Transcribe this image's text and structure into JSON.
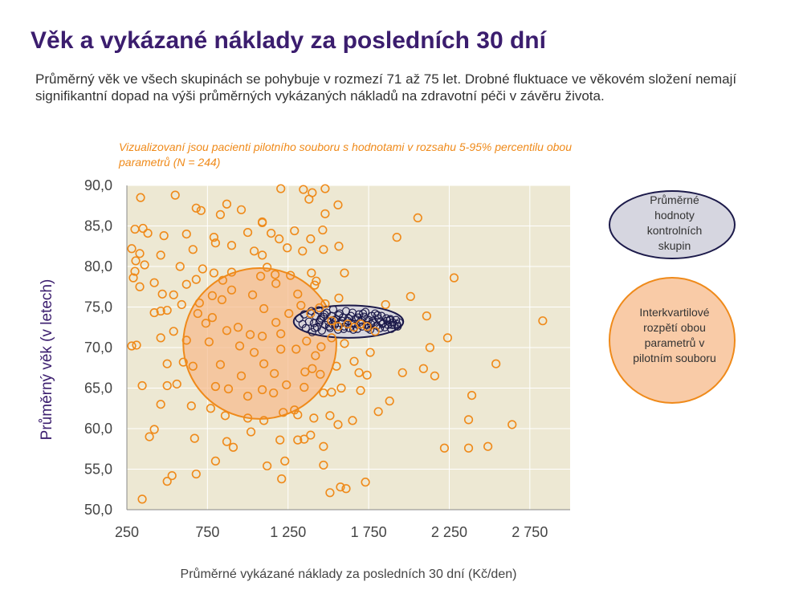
{
  "title": "Věk a vykázané náklady za posledních 30 dní",
  "subtitle": "Průměrný věk ve všech skupinách se pohybuje v rozmezí 71 až 75 let. Drobné fluktuace ve věkovém složení nemají signifikantní dopad na výši průměrných vykázaných nákladů na zdravotní péči v závěru života.",
  "note": "Vizualizovaní jsou pacienti pilotního souboru s hodnotami v rozsahu 5-95% percentilu obou parametrů (N = 244)",
  "legend": {
    "control": "Průměrné hodnoty kontrolních skupin",
    "iqr": "Interkvartilové rozpětí obou parametrů v pilotním souboru"
  },
  "colors": {
    "title": "#3b1d6e",
    "pilot": "#ef8a1a",
    "pilot_fill": "#f7b98a",
    "control": "#1c1a4a",
    "control_fill": "#d6d6e0",
    "plot_bg": "#ede8d3"
  },
  "chart_data": {
    "type": "scatter",
    "xlabel": "Průměrné vykázané náklady za posledních 30 dní (Kč/den)",
    "ylabel": "Průměrný věk (v letech)",
    "xlim": [
      250,
      3000
    ],
    "ylim": [
      50,
      90
    ],
    "xticks": [
      250,
      750,
      1250,
      1750,
      2250,
      2750
    ],
    "xtick_labels": [
      "250",
      "750",
      "1 250",
      "1 750",
      "2 250",
      "2 750"
    ],
    "yticks": [
      50,
      55,
      60,
      65,
      70,
      75,
      80,
      85,
      90
    ],
    "ytick_labels": [
      "50,0",
      "55,0",
      "60,0",
      "65,0",
      "70,0",
      "75,0",
      "80,0",
      "85,0",
      "90,0"
    ],
    "grid": true,
    "series": [
      {
        "points": [
          [
            335,
            88.5
          ],
          [
            550,
            88.8
          ],
          [
            680,
            87.2
          ],
          [
            710,
            86.9
          ],
          [
            830,
            86.4
          ],
          [
            870,
            87.7
          ],
          [
            960,
            87.0
          ],
          [
            1090,
            85.5
          ],
          [
            1205,
            89.6
          ],
          [
            1345,
            89.5
          ],
          [
            1380,
            88.3
          ],
          [
            1400,
            89.1
          ],
          [
            1480,
            89.6
          ],
          [
            1480,
            86.5
          ],
          [
            1560,
            87.6
          ],
          [
            2055,
            86.0
          ],
          [
            300,
            84.6
          ],
          [
            350,
            84.7
          ],
          [
            380,
            84.1
          ],
          [
            480,
            83.8
          ],
          [
            620,
            84.0
          ],
          [
            790,
            83.6
          ],
          [
            800,
            82.9
          ],
          [
            900,
            82.6
          ],
          [
            1000,
            84.2
          ],
          [
            1090,
            85.4
          ],
          [
            1145,
            84.1
          ],
          [
            1195,
            83.4
          ],
          [
            1245,
            82.3
          ],
          [
            1290,
            84.4
          ],
          [
            1390,
            83.4
          ],
          [
            1465,
            84.5
          ],
          [
            1470,
            82.1
          ],
          [
            1565,
            82.5
          ],
          [
            1925,
            83.6
          ],
          [
            280,
            82.2
          ],
          [
            330,
            81.6
          ],
          [
            305,
            80.7
          ],
          [
            300,
            79.4
          ],
          [
            290,
            78.6
          ],
          [
            360,
            80.2
          ],
          [
            420,
            78.0
          ],
          [
            460,
            81.4
          ],
          [
            660,
            82.1
          ],
          [
            580,
            80.0
          ],
          [
            720,
            79.7
          ],
          [
            790,
            79.2
          ],
          [
            845,
            78.3
          ],
          [
            900,
            79.3
          ],
          [
            1040,
            81.9
          ],
          [
            1090,
            81.4
          ],
          [
            1120,
            79.9
          ],
          [
            1170,
            79.0
          ],
          [
            1265,
            78.9
          ],
          [
            1340,
            81.9
          ],
          [
            1395,
            79.2
          ],
          [
            1425,
            78.2
          ],
          [
            1600,
            79.2
          ],
          [
            2280,
            78.6
          ],
          [
            330,
            77.5
          ],
          [
            470,
            76.6
          ],
          [
            540,
            76.5
          ],
          [
            620,
            77.8
          ],
          [
            680,
            78.4
          ],
          [
            700,
            75.5
          ],
          [
            780,
            76.4
          ],
          [
            840,
            75.9
          ],
          [
            900,
            77.1
          ],
          [
            1030,
            76.5
          ],
          [
            1080,
            78.8
          ],
          [
            1175,
            77.9
          ],
          [
            1310,
            76.6
          ],
          [
            1415,
            77.7
          ],
          [
            1565,
            76.1
          ],
          [
            1855,
            75.3
          ],
          [
            2010,
            76.3
          ],
          [
            420,
            74.3
          ],
          [
            460,
            74.5
          ],
          [
            500,
            74.6
          ],
          [
            590,
            75.3
          ],
          [
            690,
            74.2
          ],
          [
            740,
            73.0
          ],
          [
            780,
            73.7
          ],
          [
            940,
            72.5
          ],
          [
            1015,
            71.6
          ],
          [
            1100,
            74.8
          ],
          [
            1175,
            73.1
          ],
          [
            1255,
            74.2
          ],
          [
            1330,
            75.2
          ],
          [
            1390,
            74.2
          ],
          [
            1445,
            74.9
          ],
          [
            1480,
            75.4
          ],
          [
            1520,
            73.3
          ],
          [
            1560,
            72.6
          ],
          [
            1620,
            72.9
          ],
          [
            1660,
            72.5
          ],
          [
            1700,
            72.9
          ],
          [
            1740,
            72.6
          ],
          [
            1790,
            72.0
          ],
          [
            2110,
            73.9
          ],
          [
            2830,
            73.3
          ],
          [
            280,
            70.2
          ],
          [
            310,
            70.3
          ],
          [
            460,
            71.2
          ],
          [
            540,
            72.0
          ],
          [
            620,
            70.9
          ],
          [
            760,
            70.7
          ],
          [
            870,
            72.1
          ],
          [
            950,
            70.2
          ],
          [
            1090,
            71.4
          ],
          [
            1205,
            71.7
          ],
          [
            1300,
            69.8
          ],
          [
            1365,
            70.8
          ],
          [
            1420,
            69.0
          ],
          [
            1455,
            70.1
          ],
          [
            1520,
            71.2
          ],
          [
            1600,
            70.5
          ],
          [
            1760,
            69.4
          ],
          [
            2130,
            70.0
          ],
          [
            2240,
            71.2
          ],
          [
            500,
            68.0
          ],
          [
            600,
            68.2
          ],
          [
            660,
            67.7
          ],
          [
            830,
            67.9
          ],
          [
            960,
            66.5
          ],
          [
            1040,
            69.4
          ],
          [
            1100,
            68.0
          ],
          [
            1165,
            66.8
          ],
          [
            1205,
            69.8
          ],
          [
            1355,
            67.0
          ],
          [
            1400,
            67.4
          ],
          [
            1450,
            66.7
          ],
          [
            1550,
            67.7
          ],
          [
            1660,
            68.3
          ],
          [
            1690,
            66.9
          ],
          [
            1740,
            66.6
          ],
          [
            1960,
            66.9
          ],
          [
            2090,
            67.4
          ],
          [
            2160,
            66.5
          ],
          [
            2540,
            68.0
          ],
          [
            345,
            65.3
          ],
          [
            500,
            65.3
          ],
          [
            560,
            65.5
          ],
          [
            800,
            65.2
          ],
          [
            880,
            64.9
          ],
          [
            1000,
            64.0
          ],
          [
            1090,
            64.8
          ],
          [
            1160,
            64.4
          ],
          [
            1240,
            65.4
          ],
          [
            1350,
            65.1
          ],
          [
            1470,
            64.4
          ],
          [
            1520,
            64.5
          ],
          [
            1580,
            65.0
          ],
          [
            1700,
            64.7
          ],
          [
            1880,
            63.4
          ],
          [
            2390,
            64.1
          ],
          [
            460,
            63.0
          ],
          [
            650,
            62.8
          ],
          [
            770,
            62.5
          ],
          [
            860,
            61.6
          ],
          [
            1000,
            61.3
          ],
          [
            1100,
            61.0
          ],
          [
            1220,
            62.0
          ],
          [
            1290,
            62.3
          ],
          [
            1310,
            61.7
          ],
          [
            1410,
            61.3
          ],
          [
            1510,
            61.6
          ],
          [
            1650,
            61.0
          ],
          [
            1810,
            62.1
          ],
          [
            2370,
            61.1
          ],
          [
            2640,
            60.5
          ],
          [
            420,
            59.9
          ],
          [
            390,
            59.0
          ],
          [
            670,
            58.8
          ],
          [
            870,
            58.4
          ],
          [
            910,
            57.7
          ],
          [
            1020,
            59.6
          ],
          [
            1200,
            58.6
          ],
          [
            1310,
            58.6
          ],
          [
            1350,
            58.7
          ],
          [
            1390,
            59.2
          ],
          [
            1470,
            57.8
          ],
          [
            1560,
            60.5
          ],
          [
            2220,
            57.6
          ],
          [
            2370,
            57.6
          ],
          [
            2490,
            57.8
          ],
          [
            800,
            56.0
          ],
          [
            1230,
            56.0
          ],
          [
            1470,
            55.5
          ],
          [
            1120,
            55.4
          ],
          [
            530,
            54.2
          ],
          [
            500,
            53.5
          ],
          [
            680,
            54.4
          ],
          [
            1210,
            53.8
          ],
          [
            1575,
            52.8
          ],
          [
            1610,
            52.6
          ],
          [
            1730,
            53.4
          ],
          [
            1510,
            52.1
          ],
          [
            345,
            51.3
          ]
        ]
      },
      {
        "points": [
          [
            1320,
            73.6
          ],
          [
            1340,
            72.9
          ],
          [
            1350,
            74.1
          ],
          [
            1360,
            72.4
          ],
          [
            1380,
            73.2
          ],
          [
            1395,
            74.5
          ],
          [
            1400,
            71.9
          ],
          [
            1410,
            73.0
          ],
          [
            1420,
            73.9
          ],
          [
            1430,
            72.5
          ],
          [
            1440,
            74.6
          ],
          [
            1450,
            73.4
          ],
          [
            1460,
            72.1
          ],
          [
            1470,
            73.8
          ],
          [
            1480,
            72.8
          ],
          [
            1490,
            74.3
          ],
          [
            1500,
            73.2
          ],
          [
            1510,
            72.4
          ],
          [
            1520,
            73.9
          ],
          [
            1530,
            74.7
          ],
          [
            1540,
            72.8
          ],
          [
            1550,
            73.5
          ],
          [
            1560,
            72.2
          ],
          [
            1570,
            74.2
          ],
          [
            1580,
            73.0
          ],
          [
            1590,
            73.7
          ],
          [
            1600,
            72.6
          ],
          [
            1610,
            74.5
          ],
          [
            1620,
            73.3
          ],
          [
            1630,
            72.4
          ],
          [
            1640,
            73.9
          ],
          [
            1650,
            74.3
          ],
          [
            1660,
            72.9
          ],
          [
            1670,
            73.5
          ],
          [
            1680,
            72.3
          ],
          [
            1690,
            74.1
          ],
          [
            1700,
            73.2
          ],
          [
            1710,
            72.6
          ],
          [
            1720,
            73.8
          ],
          [
            1730,
            74.4
          ],
          [
            1740,
            72.8
          ],
          [
            1750,
            73.4
          ],
          [
            1760,
            72.2
          ],
          [
            1770,
            73.9
          ],
          [
            1780,
            73.1
          ],
          [
            1790,
            74.2
          ],
          [
            1800,
            72.7
          ],
          [
            1810,
            73.6
          ],
          [
            1820,
            72.4
          ],
          [
            1830,
            73.9
          ],
          [
            1840,
            73.0
          ],
          [
            1850,
            72.5
          ],
          [
            1860,
            73.6
          ],
          [
            1870,
            72.8
          ],
          [
            1880,
            73.4
          ],
          [
            1890,
            72.3
          ],
          [
            1900,
            73.1
          ],
          [
            1910,
            72.8
          ],
          [
            1920,
            73.4
          ],
          [
            1930,
            72.6
          ],
          [
            1940,
            73.1
          ],
          [
            1415,
            72.4
          ],
          [
            1445,
            73.1
          ],
          [
            1475,
            74.1
          ],
          [
            1505,
            72.6
          ],
          [
            1535,
            73.4
          ],
          [
            1565,
            74.0
          ],
          [
            1595,
            72.3
          ],
          [
            1625,
            73.6
          ],
          [
            1655,
            72.2
          ],
          [
            1685,
            73.7
          ],
          [
            1715,
            74.2
          ],
          [
            1745,
            72.4
          ],
          [
            1775,
            73.3
          ],
          [
            1805,
            74.0
          ],
          [
            1835,
            72.9
          ],
          [
            1865,
            73.3
          ],
          [
            1895,
            72.8
          ],
          [
            1925,
            72.9
          ],
          [
            1455,
            73.6
          ],
          [
            1525,
            72.9
          ],
          [
            1585,
            73.3
          ],
          [
            1645,
            73.0
          ],
          [
            1705,
            73.4
          ],
          [
            1765,
            72.9
          ],
          [
            1825,
            73.2
          ],
          [
            1885,
            73.5
          ]
        ]
      }
    ],
    "iqr_circle": {
      "cx": 1075,
      "cy": 70.5,
      "rx": 475,
      "ry": 9.3
    },
    "control_ellipse": {
      "cx": 1625,
      "cy": 73.2,
      "rx": 340,
      "ry": 2.0
    }
  }
}
